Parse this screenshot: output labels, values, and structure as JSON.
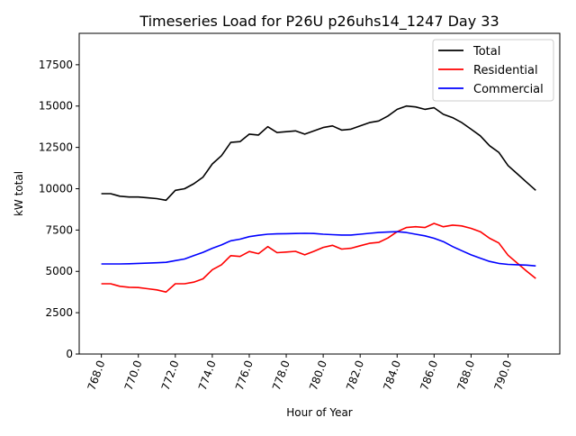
{
  "chart_data": {
    "type": "line",
    "title": "Timeseries Load for P26U p26uhs14_1247  Day 33",
    "xlabel": "Hour of Year",
    "ylabel": "kW total",
    "xlim": [
      766.8,
      792.8
    ],
    "ylim": [
      0,
      19400
    ],
    "xticks": [
      768,
      770,
      772,
      774,
      776,
      778,
      780,
      782,
      784,
      786,
      788,
      790
    ],
    "xtick_labels": [
      "768.0",
      "770.0",
      "772.0",
      "774.0",
      "776.0",
      "778.0",
      "780.0",
      "782.0",
      "784.0",
      "786.0",
      "788.0",
      "790.0"
    ],
    "yticks": [
      0,
      2500,
      5000,
      7500,
      10000,
      12500,
      15000,
      17500
    ],
    "ytick_labels": [
      "0",
      "2500",
      "5000",
      "7500",
      "10000",
      "12500",
      "15000",
      "17500"
    ],
    "grid": false,
    "legend_position": "top-right",
    "x": [
      768,
      768.5,
      769,
      769.5,
      770,
      770.5,
      771,
      771.5,
      772,
      772.5,
      773,
      773.5,
      774,
      774.5,
      775,
      775.5,
      776,
      776.5,
      777,
      777.5,
      778,
      778.5,
      779,
      779.5,
      780,
      780.5,
      781,
      781.5,
      782,
      782.5,
      783,
      783.5,
      784,
      784.5,
      785,
      785.5,
      786,
      786.5,
      787,
      787.5,
      788,
      788.5,
      789,
      789.5,
      790,
      790.5,
      791,
      791.5
    ],
    "series": [
      {
        "name": "Total",
        "color": "#000000",
        "values": [
          9700,
          9700,
          9550,
          9500,
          9500,
          9450,
          9400,
          9300,
          9900,
          10000,
          10300,
          10700,
          11500,
          12000,
          12800,
          12850,
          13300,
          13250,
          13750,
          13400,
          13450,
          13500,
          13300,
          13500,
          13700,
          13800,
          13550,
          13600,
          13800,
          14000,
          14100,
          14400,
          14800,
          15000,
          14950,
          14800,
          14900,
          14500,
          14300,
          14000,
          13600,
          13200,
          12600,
          12200,
          11400,
          10900,
          10400,
          9900
        ]
      },
      {
        "name": "Residential",
        "color": "#ff0000",
        "values": [
          4250,
          4250,
          4100,
          4040,
          4020,
          3950,
          3880,
          3750,
          4250,
          4250,
          4350,
          4550,
          5100,
          5400,
          5950,
          5900,
          6200,
          6070,
          6500,
          6130,
          6170,
          6210,
          6000,
          6210,
          6450,
          6580,
          6350,
          6400,
          6550,
          6700,
          6750,
          7020,
          7400,
          7650,
          7700,
          7650,
          7900,
          7700,
          7800,
          7750,
          7600,
          7400,
          7000,
          6720,
          5980,
          5500,
          5020,
          4570
        ]
      },
      {
        "name": "Commercial",
        "color": "#0000ff",
        "values": [
          5450,
          5450,
          5450,
          5460,
          5480,
          5500,
          5520,
          5550,
          5650,
          5750,
          5950,
          6150,
          6400,
          6600,
          6850,
          6950,
          7100,
          7180,
          7250,
          7270,
          7280,
          7290,
          7300,
          7290,
          7250,
          7220,
          7200,
          7200,
          7250,
          7300,
          7350,
          7380,
          7400,
          7350,
          7250,
          7150,
          7000,
          6800,
          6500,
          6250,
          6000,
          5800,
          5600,
          5480,
          5420,
          5400,
          5380,
          5330
        ]
      }
    ]
  }
}
